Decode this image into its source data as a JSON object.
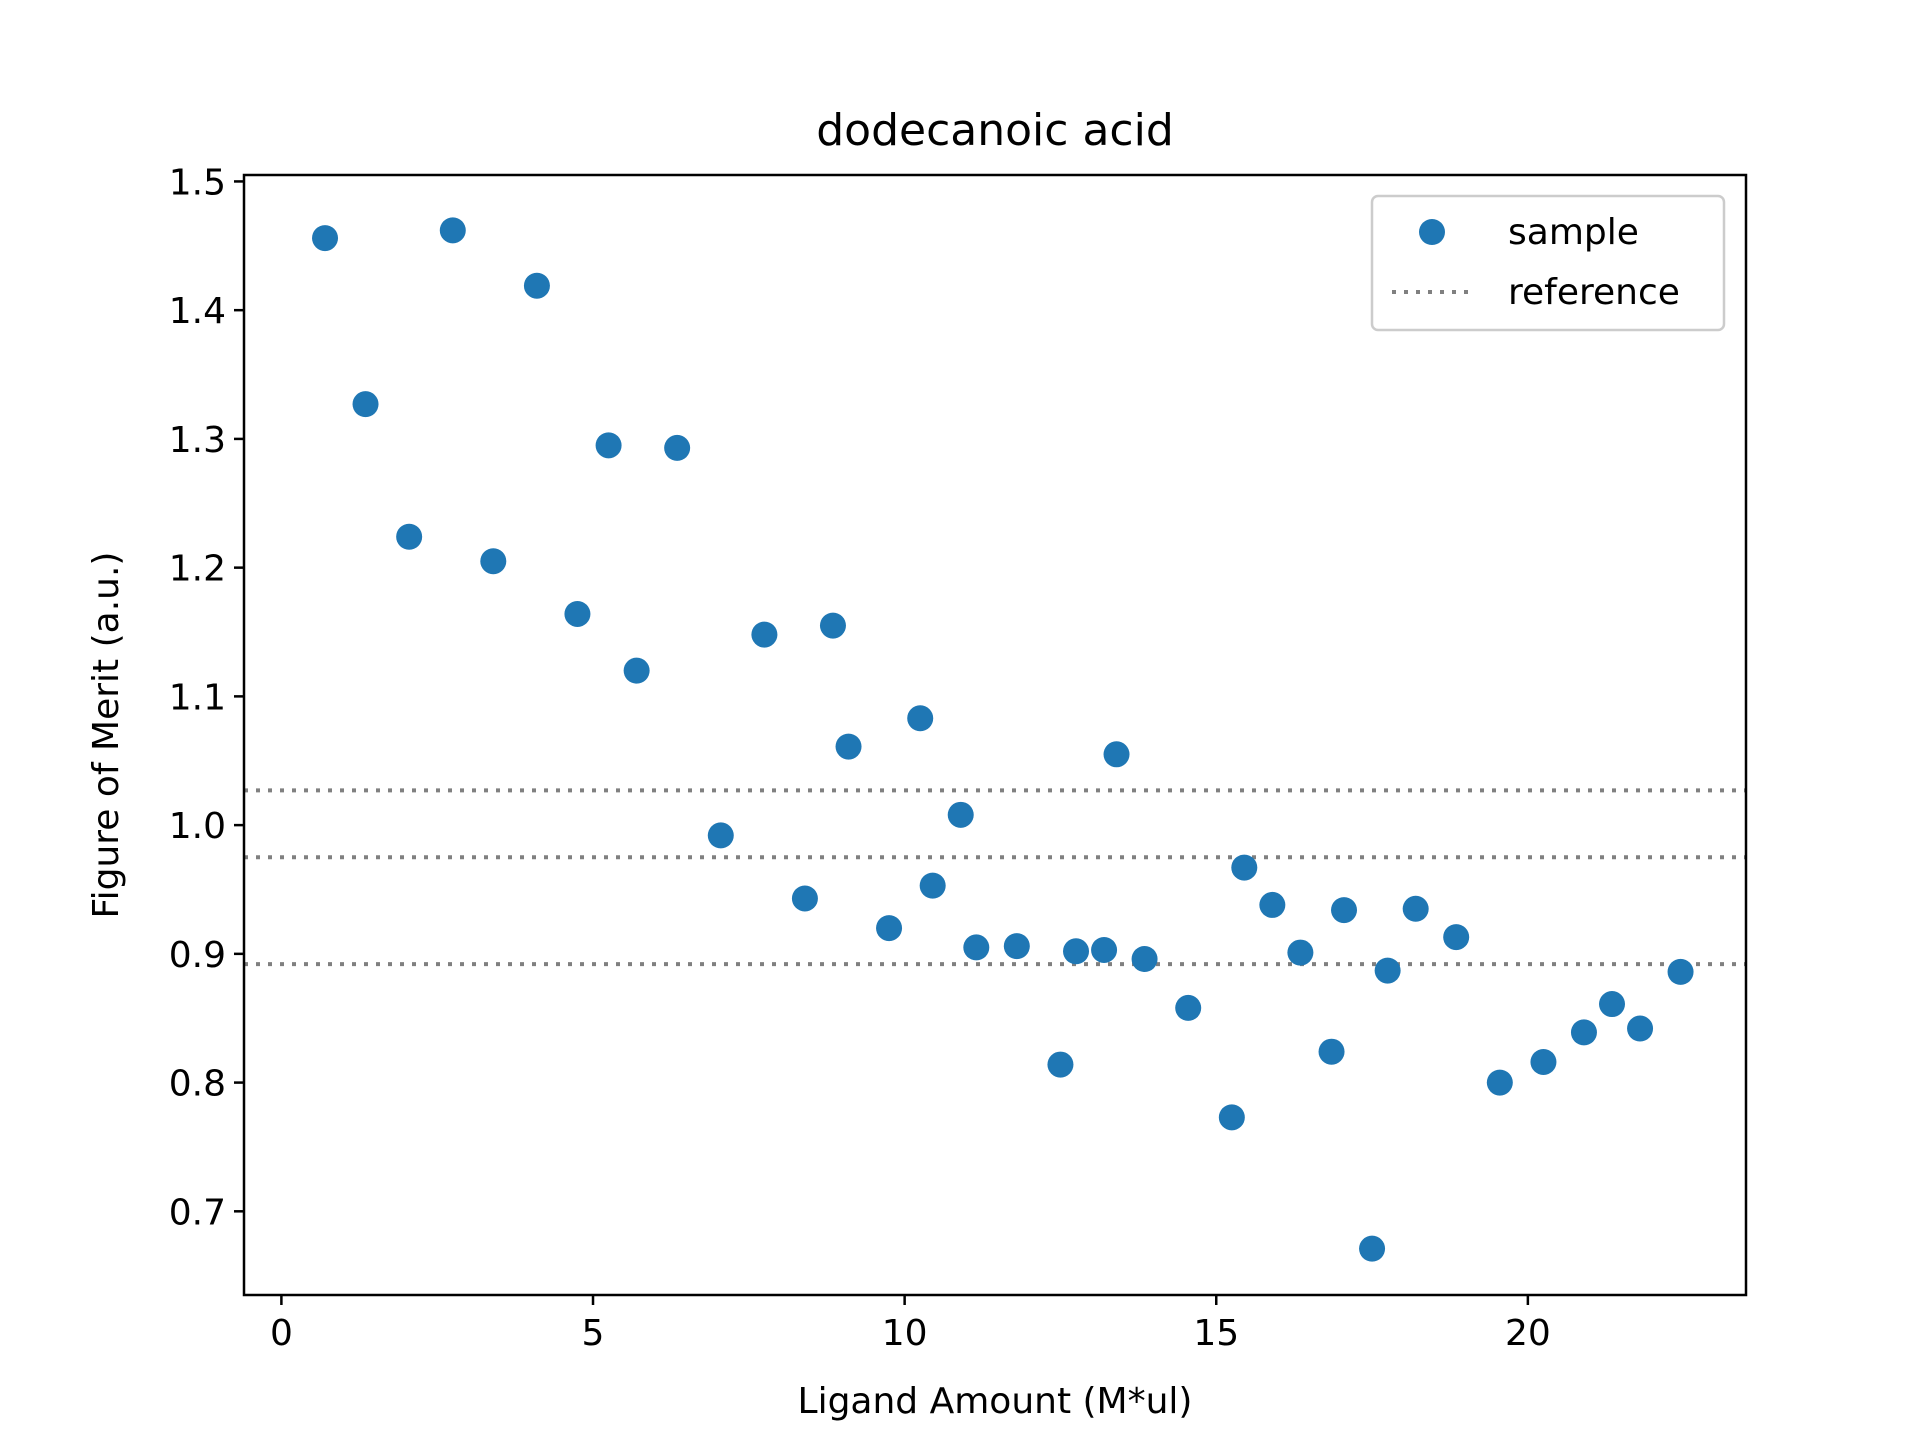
{
  "chart_data": {
    "type": "scatter",
    "title": "dodecanoic acid",
    "xlabel": "Ligand Amount (M*ul)",
    "ylabel": "Figure of Merit (a.u.)",
    "xlim": [
      -0.6,
      23.5
    ],
    "ylim": [
      0.635,
      1.505
    ],
    "xticks": [
      0,
      5,
      10,
      15,
      20
    ],
    "yticks": [
      0.7,
      0.8,
      0.9,
      1.0,
      1.1,
      1.2,
      1.3,
      1.4,
      1.5
    ],
    "grid": false,
    "legend": {
      "position": "top-right",
      "entries": [
        {
          "label": "sample",
          "marker": "circle"
        },
        {
          "label": "reference",
          "marker": "dotted-line"
        }
      ]
    },
    "series": [
      {
        "name": "sample",
        "style": "scatter",
        "color": "#1f77b4",
        "points": [
          [
            0.7,
            1.456
          ],
          [
            1.35,
            1.327
          ],
          [
            2.05,
            1.224
          ],
          [
            2.75,
            1.462
          ],
          [
            3.4,
            1.205
          ],
          [
            4.1,
            1.419
          ],
          [
            4.75,
            1.164
          ],
          [
            5.25,
            1.295
          ],
          [
            5.7,
            1.12
          ],
          [
            6.35,
            1.293
          ],
          [
            7.05,
            0.992
          ],
          [
            7.75,
            1.148
          ],
          [
            8.4,
            0.943
          ],
          [
            8.85,
            1.155
          ],
          [
            9.1,
            1.061
          ],
          [
            9.75,
            0.92
          ],
          [
            10.25,
            1.083
          ],
          [
            10.45,
            0.953
          ],
          [
            10.9,
            1.008
          ],
          [
            11.15,
            0.905
          ],
          [
            11.8,
            0.906
          ],
          [
            12.5,
            0.814
          ],
          [
            12.75,
            0.902
          ],
          [
            13.2,
            0.903
          ],
          [
            13.4,
            1.055
          ],
          [
            13.85,
            0.896
          ],
          [
            14.55,
            0.858
          ],
          [
            15.25,
            0.773
          ],
          [
            15.45,
            0.967
          ],
          [
            15.9,
            0.938
          ],
          [
            16.35,
            0.901
          ],
          [
            16.85,
            0.824
          ],
          [
            17.05,
            0.934
          ],
          [
            17.5,
            0.671
          ],
          [
            17.75,
            0.887
          ],
          [
            18.2,
            0.935
          ],
          [
            18.85,
            0.913
          ],
          [
            19.55,
            0.8
          ],
          [
            20.25,
            0.816
          ],
          [
            20.9,
            0.839
          ],
          [
            21.35,
            0.861
          ],
          [
            21.8,
            0.842
          ],
          [
            22.45,
            0.886
          ]
        ]
      },
      {
        "name": "reference",
        "style": "dotted-hlines",
        "color": "#808080",
        "values": [
          1.027,
          0.975,
          0.892
        ]
      }
    ]
  }
}
